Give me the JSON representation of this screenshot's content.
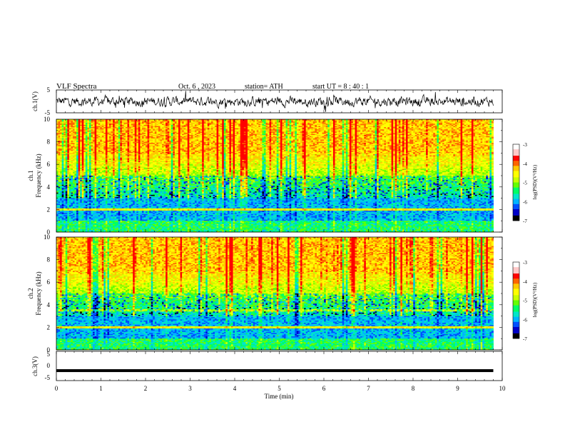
{
  "header": {
    "title": "VLF  Spectra",
    "date": "Oct. 6  , 2023",
    "station": "station= ATH",
    "start": "start  UT  =   8  : 40 : 1"
  },
  "colors": {
    "colormap": [
      "#000000",
      "#0000c8",
      "#0050ff",
      "#00b4ff",
      "#00e6c8",
      "#00ff64",
      "#64ff00",
      "#c8ff00",
      "#ffff00",
      "#ffc800",
      "#ff6400",
      "#ff0000",
      "#ffc8c8",
      "#ffffff"
    ],
    "waveform": "#000000"
  },
  "chart_data": [
    {
      "type": "line",
      "name": "ch1-waveform",
      "ylabel": "ch.1(V)",
      "ylim": [
        -5,
        5
      ],
      "yticks": [
        "5",
        "-5"
      ],
      "xlim": [
        0,
        10
      ]
    },
    {
      "type": "heatmap",
      "name": "ch1-spectrogram",
      "ylabel_top": "ch.1",
      "ylabel": "Frequency  (kHz)",
      "ylim": [
        0,
        10
      ],
      "yticks": [
        "10",
        "8",
        "6",
        "4",
        "2",
        "0"
      ],
      "xlim": [
        0,
        10
      ],
      "colorbar": {
        "label": "log(PSD)(V²/Hz)",
        "range": [
          -7,
          -3
        ],
        "ticks": [
          "-3",
          "-4",
          "-5",
          "-6",
          "-7"
        ]
      }
    },
    {
      "type": "heatmap",
      "name": "ch2-spectrogram",
      "ylabel_top": "ch.2",
      "ylabel": "Frequency  (kHz)",
      "ylim": [
        0,
        10
      ],
      "yticks": [
        "10",
        "8",
        "6",
        "4",
        "2",
        "0"
      ],
      "xlim": [
        0,
        10
      ],
      "colorbar": {
        "label": "log(PSD)(V²/Hz)",
        "range": [
          -7,
          -3
        ],
        "ticks": [
          "-3",
          "-4",
          "-5",
          "-6",
          "-7"
        ]
      }
    },
    {
      "type": "line",
      "name": "ch3-waveform",
      "ylabel": "ch.3(V)",
      "ylim": [
        -5,
        5
      ],
      "yticks": [
        "5",
        "0",
        "-5"
      ],
      "xlim": [
        0,
        10
      ],
      "level": -1.6
    }
  ],
  "x_axis": {
    "label": "Time  (min)",
    "ticks": [
      "0",
      "1",
      "2",
      "3",
      "4",
      "5",
      "6",
      "7",
      "8",
      "9",
      "10"
    ]
  }
}
